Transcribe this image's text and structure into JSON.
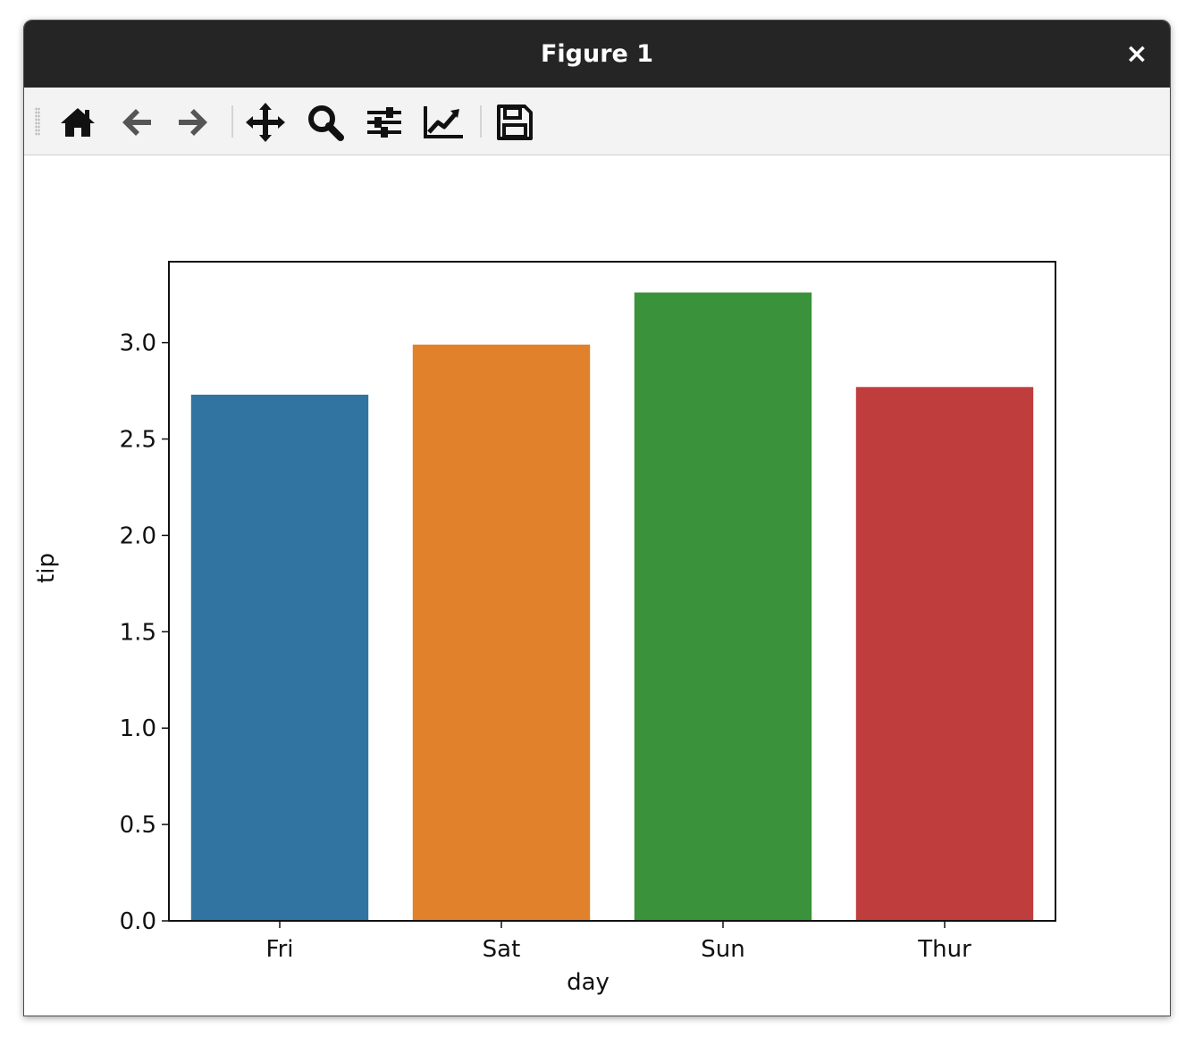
{
  "window": {
    "title": "Figure 1",
    "close_label": "×"
  },
  "toolbar": {
    "tools": [
      {
        "name": "home-icon",
        "tooltip": "Reset original view"
      },
      {
        "name": "back-arrow-icon",
        "tooltip": "Back to previous view"
      },
      {
        "name": "forward-arrow-icon",
        "tooltip": "Forward to next view"
      },
      {
        "name": "pan-move-icon",
        "tooltip": "Pan axes"
      },
      {
        "name": "zoom-magnifier-icon",
        "tooltip": "Zoom to rectangle"
      },
      {
        "name": "subplots-sliders-icon",
        "tooltip": "Configure subplots"
      },
      {
        "name": "edit-axes-line-icon",
        "tooltip": "Edit axis, curve and image parameters"
      },
      {
        "name": "save-floppy-icon",
        "tooltip": "Save the figure"
      }
    ]
  },
  "chart_data": {
    "type": "bar",
    "categories": [
      "Fri",
      "Sat",
      "Sun",
      "Thur"
    ],
    "values": [
      2.73,
      2.99,
      3.26,
      2.77
    ],
    "colors": [
      "#3274a1",
      "#e1812c",
      "#3a923a",
      "#c03d3e"
    ],
    "xlabel": "day",
    "ylabel": "tip",
    "ylim": [
      0,
      3.42
    ],
    "yticks": [
      "0.0",
      "0.5",
      "1.0",
      "1.5",
      "2.0",
      "2.5",
      "3.0"
    ],
    "grid": false,
    "legend": "none"
  }
}
